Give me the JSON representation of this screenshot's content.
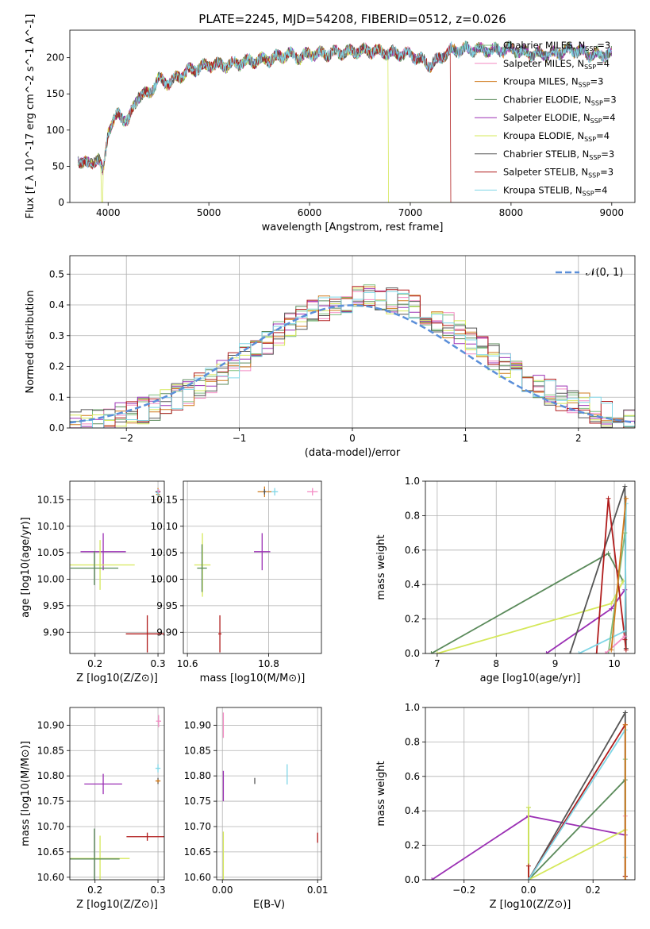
{
  "title": "PLATE=2245, MJD=54208, FIBERID=0512, z=0.026",
  "models": [
    {
      "name": "Chabrier MILES",
      "nssp": "3",
      "color": "#7fbf7f"
    },
    {
      "name": "Salpeter MILES",
      "nssp": "4",
      "color": "#f48cc4"
    },
    {
      "name": "Kroupa MILES",
      "nssp": "3",
      "color": "#d07a1c"
    },
    {
      "name": "Chabrier ELODIE",
      "nssp": "3",
      "color": "#5a8a5a"
    },
    {
      "name": "Salpeter ELODIE",
      "nssp": "4",
      "color": "#9b30b4"
    },
    {
      "name": "Kroupa ELODIE",
      "nssp": "4",
      "color": "#d5e85a"
    },
    {
      "name": "Chabrier STELIB",
      "nssp": "3",
      "color": "#555555"
    },
    {
      "name": "Salpeter STELIB",
      "nssp": "3",
      "color": "#b01c1c"
    },
    {
      "name": "Kroupa STELIB",
      "nssp": "4",
      "color": "#7fd6e6"
    }
  ],
  "chart_data": [
    {
      "type": "line",
      "id": "spectrum",
      "xlabel": "wavelength [Angstrom, rest frame]",
      "ylabel": "Flux [f_λ 10^-17 erg cm^-2 s^-1 A^-1]",
      "xlim": [
        3620,
        9230
      ],
      "ylim": [
        0,
        238
      ],
      "xticks": [
        4000,
        5000,
        6000,
        7000,
        8000,
        9000
      ],
      "yticks": [
        0,
        50,
        100,
        150,
        200
      ],
      "envelope": {
        "x": [
          3700,
          3800,
          3900,
          3950,
          4000,
          4100,
          4200,
          4300,
          4400,
          4500,
          4600,
          4800,
          5000,
          5200,
          5400,
          5600,
          5800,
          5900,
          6000,
          6200,
          6400,
          6600,
          6800,
          7000,
          7200,
          7400,
          7600,
          7800,
          8000,
          8200,
          8400,
          8600,
          8800,
          9000
        ],
        "y": [
          60,
          52,
          62,
          40,
          100,
          122,
          113,
          148,
          150,
          170,
          165,
          182,
          190,
          190,
          195,
          198,
          205,
          200,
          205,
          206,
          208,
          210,
          206,
          205,
          190,
          210,
          212,
          210,
          212,
          205,
          205,
          212,
          204,
          205
        ]
      },
      "dropouts": [
        {
          "model": "Kroupa ELODIE",
          "start": 6780
        },
        {
          "model": "Salpeter STELIB",
          "start": 7400
        },
        {
          "model": "Kroupa ELODIE",
          "start": 3930,
          "end": 3950
        }
      ],
      "legend_position": "top-right"
    },
    {
      "type": "histogram",
      "id": "residuals",
      "xlabel": "(data-model)/error",
      "ylabel": "Normed distribution",
      "xlim": [
        -2.5,
        2.5
      ],
      "ylim": [
        0,
        0.56
      ],
      "xticks": [
        -2,
        -1,
        0,
        1,
        2
      ],
      "yticks": [
        0.0,
        0.1,
        0.2,
        0.3,
        0.4,
        0.5
      ],
      "bin_width": 0.1,
      "reference": {
        "label": "𝒩(0, 1)",
        "color": "#5b8fd9"
      },
      "legend_position": "top-right",
      "grid": true
    },
    {
      "type": "scatter",
      "id": "age-vs-z",
      "xlabel": "Z [log10(Z/Z⊙)]",
      "ylabel": "age [log10(age/yr)]",
      "xlim": [
        0.16,
        0.31
      ],
      "ylim": [
        9.86,
        10.185
      ],
      "xticks": [
        0.2,
        0.3
      ],
      "yticks": [
        9.9,
        9.95,
        10.0,
        10.05,
        10.1,
        10.15
      ],
      "grid": true,
      "points": [
        {
          "model": "Salpeter ELODIE",
          "x": 0.213,
          "y": 10.052,
          "xerr": 0.036,
          "yerr": 0.035
        },
        {
          "model": "Kroupa ELODIE",
          "x": 0.208,
          "y": 10.027,
          "xerr": 0.055,
          "yerr": 0.047
        },
        {
          "model": "Chabrier ELODIE",
          "x": 0.199,
          "y": 10.021,
          "xerr": 0.038,
          "yerr": 0.032
        },
        {
          "model": "Salpeter STELIB",
          "x": 0.283,
          "y": 9.897,
          "xerr": 0.034,
          "yerr": 0.035
        },
        {
          "model": "Chabrier STELIB",
          "x": 0.3,
          "y": 10.165,
          "xerr": 0.004,
          "yerr": 0.004
        },
        {
          "model": "Kroupa MILES",
          "x": 0.3,
          "y": 10.16,
          "xerr": 0.003,
          "yerr": 0.012
        },
        {
          "model": "Kroupa STELIB",
          "x": 0.3,
          "y": 10.163,
          "xerr": 0.003,
          "yerr": 0.007
        },
        {
          "model": "Salpeter MILES",
          "x": 0.301,
          "y": 10.166,
          "xerr": 0.003,
          "yerr": 0.004
        }
      ]
    },
    {
      "type": "scatter",
      "id": "age-vs-mass",
      "xlabel": "mass [log10(M/M⊙)]",
      "ylabel": "",
      "xlim": [
        10.59,
        10.93
      ],
      "ylim": [
        9.86,
        10.185
      ],
      "xticks": [
        10.6,
        10.8
      ],
      "yticks": [
        9.9,
        9.95,
        10.0,
        10.05,
        10.1,
        10.15
      ],
      "grid": true,
      "points": [
        {
          "model": "Salpeter ELODIE",
          "x": 10.784,
          "y": 10.052,
          "xerr": 0.02,
          "yerr": 0.035
        },
        {
          "model": "Kroupa ELODIE",
          "x": 10.637,
          "y": 10.027,
          "xerr": 0.02,
          "yerr": 0.06
        },
        {
          "model": "Chabrier ELODIE",
          "x": 10.636,
          "y": 10.021,
          "xerr": 0.012,
          "yerr": 0.045
        },
        {
          "model": "Salpeter STELIB",
          "x": 10.68,
          "y": 9.897,
          "xerr": 0.004,
          "yerr": 0.035
        },
        {
          "model": "Kroupa MILES",
          "x": 10.79,
          "y": 10.165,
          "xerr": 0.017,
          "yerr": 0.01
        },
        {
          "model": "Chabrier STELIB",
          "x": 10.79,
          "y": 10.165,
          "xerr": 0.003,
          "yerr": 0.005
        },
        {
          "model": "Kroupa STELIB",
          "x": 10.815,
          "y": 10.165,
          "xerr": 0.008,
          "yerr": 0.007
        },
        {
          "model": "Salpeter MILES",
          "x": 10.908,
          "y": 10.165,
          "xerr": 0.013,
          "yerr": 0.007
        }
      ]
    },
    {
      "type": "line",
      "id": "mass-weight-vs-age",
      "xlabel": "age [log10(age/yr)]",
      "ylabel": "mass weight",
      "xlim": [
        6.8,
        10.35
      ],
      "ylim": [
        0,
        1.0
      ],
      "xticks": [
        7,
        8,
        9,
        10
      ],
      "yticks": [
        0.0,
        0.2,
        0.4,
        0.6,
        0.8,
        1.0
      ],
      "grid": true,
      "series": [
        {
          "model": "Chabrier ELODIE",
          "x": [
            6.9,
            9.9,
            10.15
          ],
          "y": [
            0.0,
            0.58,
            0.42
          ]
        },
        {
          "model": "Kroupa ELODIE",
          "x": [
            7.0,
            9.95,
            10.15
          ],
          "y": [
            0.0,
            0.29,
            0.42
          ]
        },
        {
          "model": "Salpeter ELODIE",
          "x": [
            8.85,
            9.95,
            10.18
          ],
          "y": [
            0.0,
            0.26,
            0.37
          ]
        },
        {
          "model": "Chabrier STELIB",
          "x": [
            9.25,
            10.18,
            10.2
          ],
          "y": [
            0.0,
            0.97,
            0.03
          ]
        },
        {
          "model": "Salpeter STELIB",
          "x": [
            9.7,
            9.9,
            10.18,
            10.2
          ],
          "y": [
            0.0,
            0.9,
            0.08,
            0.02
          ]
        },
        {
          "model": "Kroupa STELIB",
          "x": [
            9.4,
            10.18,
            10.2
          ],
          "y": [
            0.0,
            0.13,
            0.87
          ]
        },
        {
          "model": "Chabrier MILES",
          "x": [
            9.9,
            10.18
          ],
          "y": [
            0.0,
            0.7
          ]
        },
        {
          "model": "Salpeter MILES",
          "x": [
            9.85,
            10.18
          ],
          "y": [
            0.0,
            0.1
          ]
        },
        {
          "model": "Kroupa MILES",
          "x": [
            9.95,
            10.2
          ],
          "y": [
            0.02,
            0.9
          ]
        }
      ]
    },
    {
      "type": "scatter",
      "id": "mass-vs-z",
      "xlabel": "Z [log10(Z/Z⊙)]",
      "ylabel": "mass [log10(M/M⊙)]",
      "xlim": [
        0.16,
        0.31
      ],
      "ylim": [
        10.595,
        10.935
      ],
      "xticks": [
        0.2,
        0.3
      ],
      "yticks": [
        10.6,
        10.65,
        10.7,
        10.75,
        10.8,
        10.85,
        10.9
      ],
      "grid": true,
      "points": [
        {
          "model": "Salpeter ELODIE",
          "x": 0.213,
          "y": 10.784,
          "xerr": 0.03,
          "yerr": 0.02
        },
        {
          "model": "Kroupa ELODIE",
          "x": 0.208,
          "y": 10.637,
          "xerr": 0.047,
          "yerr": 0.045
        },
        {
          "model": "Chabrier ELODIE",
          "x": 0.199,
          "y": 10.636,
          "xerr": 0.04,
          "yerr": 0.06
        },
        {
          "model": "Salpeter STELIB",
          "x": 0.283,
          "y": 10.68,
          "xerr": 0.033,
          "yerr": 0.008
        },
        {
          "model": "Kroupa STELIB",
          "x": 0.3,
          "y": 10.815,
          "xerr": 0.004,
          "yerr": 0.008
        },
        {
          "model": "Chabrier STELIB",
          "x": 0.3,
          "y": 10.79,
          "xerr": 0.002,
          "yerr": 0.006
        },
        {
          "model": "Kroupa MILES",
          "x": 0.3,
          "y": 10.79,
          "xerr": 0.004,
          "yerr": 0.003
        },
        {
          "model": "Salpeter MILES",
          "x": 0.301,
          "y": 10.908,
          "xerr": 0.004,
          "yerr": 0.012
        }
      ]
    },
    {
      "type": "scatter",
      "id": "mass-vs-ebv",
      "xlabel": "E(B-V)",
      "ylabel": "",
      "xlim": [
        -0.0006,
        0.0104
      ],
      "ylim": [
        10.595,
        10.935
      ],
      "xticks": [
        0.0,
        0.01
      ],
      "yticks": [
        10.6,
        10.65,
        10.7,
        10.75,
        10.8,
        10.85,
        10.9
      ],
      "grid": true,
      "points": [
        {
          "model": "Salpeter MILES",
          "x": 0.0001,
          "y": 10.9,
          "xerr": 0,
          "yerr": 0.025
        },
        {
          "model": "Salpeter ELODIE",
          "x": 0.0001,
          "y": 10.78,
          "xerr": 0,
          "yerr": 0.03
        },
        {
          "model": "Kroupa ELODIE",
          "x": 0.0001,
          "y": 10.64,
          "xerr": 0,
          "yerr": 0.05
        },
        {
          "model": "Chabrier STELIB",
          "x": 0.0034,
          "y": 10.79,
          "xerr": 0,
          "yerr": 0.006
        },
        {
          "model": "Kroupa STELIB",
          "x": 0.0068,
          "y": 10.803,
          "xerr": 0,
          "yerr": 0.02
        },
        {
          "model": "Salpeter STELIB",
          "x": 0.01,
          "y": 10.678,
          "xerr": 0,
          "yerr": 0.01
        }
      ]
    },
    {
      "type": "line",
      "id": "mass-weight-vs-z",
      "xlabel": "Z [log10(Z/Z⊙)]",
      "ylabel": "mass weight",
      "xlim": [
        -0.32,
        0.33
      ],
      "ylim": [
        0,
        1.0
      ],
      "xticks": [
        -0.2,
        0.0,
        0.2
      ],
      "yticks": [
        0.0,
        0.2,
        0.4,
        0.6,
        0.8,
        1.0
      ],
      "grid": true,
      "series": [
        {
          "model": "Salpeter ELODIE",
          "x": [
            -0.3,
            0.0,
            0.3
          ],
          "y": [
            0.0,
            0.37,
            0.26
          ]
        },
        {
          "model": "Chabrier ELODIE",
          "x": [
            0.0,
            0.0,
            0.3,
            0.3
          ],
          "y": [
            0.42,
            0.0,
            0.58,
            0.02
          ]
        },
        {
          "model": "Kroupa ELODIE",
          "x": [
            0.0,
            0.0,
            0.3
          ],
          "y": [
            0.42,
            0.0,
            0.29
          ]
        },
        {
          "model": "Chabrier STELIB",
          "x": [
            0.0,
            0.3,
            0.3
          ],
          "y": [
            0.0,
            0.97,
            0.02
          ]
        },
        {
          "model": "Salpeter STELIB",
          "x": [
            0.0,
            0.0,
            0.3,
            0.3
          ],
          "y": [
            0.08,
            0.0,
            0.9,
            0.02
          ]
        },
        {
          "model": "Kroupa STELIB",
          "x": [
            0.0,
            0.3,
            0.3
          ],
          "y": [
            0.0,
            0.87,
            0.13
          ]
        },
        {
          "model": "Chabrier MILES",
          "x": [
            0.3,
            0.3
          ],
          "y": [
            0.0,
            0.7
          ]
        },
        {
          "model": "Salpeter MILES",
          "x": [
            0.3,
            0.3
          ],
          "y": [
            0.0,
            0.37
          ]
        },
        {
          "model": "Kroupa MILES",
          "x": [
            0.3,
            0.3
          ],
          "y": [
            0.0,
            0.9
          ]
        }
      ]
    }
  ]
}
